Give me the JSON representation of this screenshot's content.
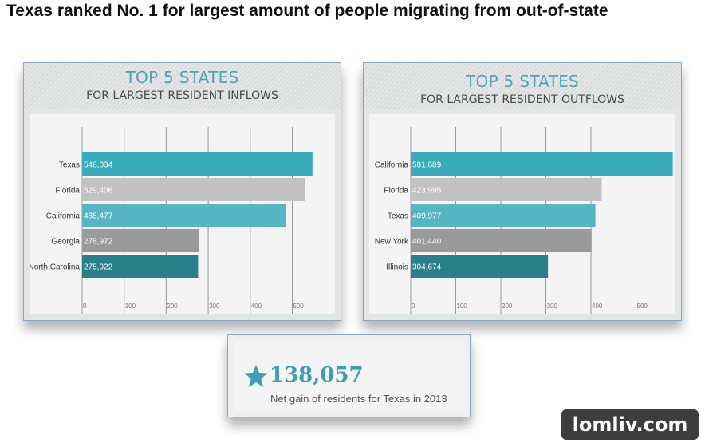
{
  "page": {
    "title": "Texas ranked No. 1 for largest amount of people migrating from out-of-state"
  },
  "chart_data": [
    {
      "type": "bar",
      "orientation": "horizontal",
      "title": "TOP 5 STATES",
      "subtitle": "FOR LARGEST RESIDENT INFLOWS",
      "categories": [
        "Texas",
        "Florida",
        "California",
        "Georgia",
        "North Carolina"
      ],
      "values": [
        548034,
        529406,
        485477,
        278972,
        275922
      ],
      "value_labels": [
        "548,034",
        "529,406",
        "485,477",
        "278,972",
        "275,922"
      ],
      "axis_ticks": [
        "0",
        "100",
        "200",
        "300",
        "400",
        "500"
      ],
      "axis_tick_values": [
        0,
        100,
        200,
        300,
        400,
        500
      ],
      "axis_scale": 1000,
      "xlim": [
        0,
        560
      ],
      "grid": true,
      "bar_colors": [
        "#3aabba",
        "#c2c2c2",
        "#56b5c4",
        "#9a9a9a",
        "#2a7f8c"
      ]
    },
    {
      "type": "bar",
      "orientation": "horizontal",
      "title": "TOP 5 STATES",
      "subtitle": "FOR LARGEST RESIDENT OUTFLOWS",
      "categories": [
        "California",
        "Florida",
        "Texas",
        "New York",
        "Illinois"
      ],
      "values": [
        581689,
        423995,
        409977,
        401440,
        304674
      ],
      "value_labels": [
        "581,689",
        "423,995",
        "409,977",
        "401,440",
        "304,674"
      ],
      "axis_ticks": [
        "0",
        "100",
        "200",
        "300",
        "400",
        "500"
      ],
      "axis_tick_values": [
        0,
        100,
        200,
        300,
        400,
        500
      ],
      "axis_scale": 1000,
      "xlim": [
        0,
        575
      ],
      "grid": true,
      "bar_colors": [
        "#3aabba",
        "#c2c2c2",
        "#56b5c4",
        "#9a9a9a",
        "#2a7f8c"
      ]
    }
  ],
  "callout": {
    "icon": "star-icon",
    "number": "138,057",
    "caption": "Net gain of residents for Texas in 2013",
    "color": "#3e9fb3"
  },
  "watermark": {
    "text": "lomliv.com"
  }
}
